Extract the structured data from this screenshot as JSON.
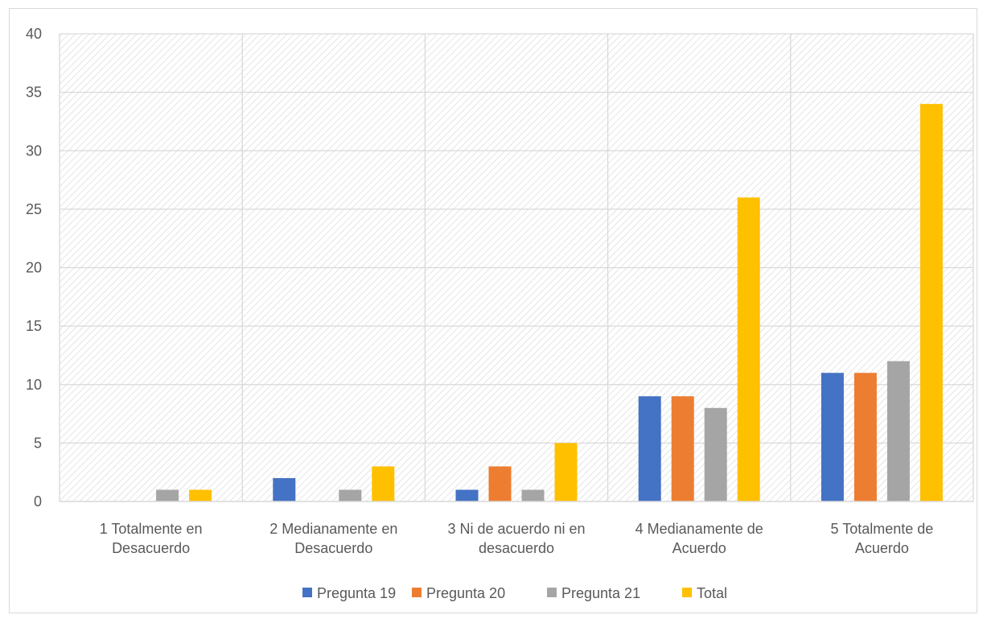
{
  "chart_data": {
    "type": "bar",
    "title": "",
    "xlabel": "",
    "ylabel": "",
    "ylim": [
      0,
      40
    ],
    "yticks": [
      0,
      5,
      10,
      15,
      20,
      25,
      30,
      35,
      40
    ],
    "grid": true,
    "legend_position": "bottom",
    "background": "diagonal-hatch",
    "categories": [
      [
        "1 Totalmente en",
        "Desacuerdo"
      ],
      [
        "2 Medianamente en",
        "Desacuerdo"
      ],
      [
        "3 Ni de acuerdo ni en",
        "desacuerdo"
      ],
      [
        "4 Medianamente de",
        "Acuerdo"
      ],
      [
        "5 Totalmente de",
        "Acuerdo"
      ]
    ],
    "series": [
      {
        "name": "Pregunta 19",
        "color": "#4472c4",
        "values": [
          0,
          2,
          1,
          9,
          11
        ]
      },
      {
        "name": "Pregunta 20",
        "color": "#ed7d31",
        "values": [
          0,
          0,
          3,
          9,
          11
        ]
      },
      {
        "name": "Pregunta 21",
        "color": "#a5a5a5",
        "values": [
          1,
          1,
          1,
          8,
          12
        ]
      },
      {
        "name": "Total",
        "color": "#ffc000",
        "values": [
          1,
          3,
          5,
          26,
          34
        ]
      }
    ]
  }
}
